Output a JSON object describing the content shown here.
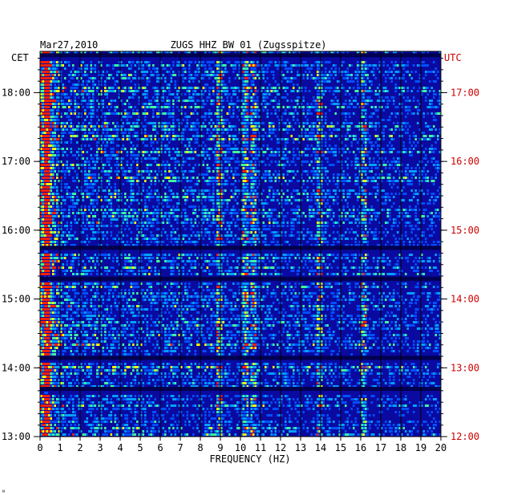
{
  "chart_data": {
    "type": "heatmap",
    "title_date": "Mar27,2010",
    "title": "ZUGS HHZ BW 01 (Zugsspitze)",
    "xlabel": "FREQUENCY (HZ)",
    "xlim": [
      0,
      20
    ],
    "x_ticks": [
      "0",
      "1",
      "2",
      "3",
      "4",
      "5",
      "6",
      "7",
      "8",
      "9",
      "10",
      "11",
      "12",
      "13",
      "14",
      "15",
      "16",
      "17",
      "18",
      "19",
      "20"
    ],
    "left_axis": {
      "label": "CET",
      "ticks": [
        {
          "hour": 18,
          "label": "18:00"
        },
        {
          "hour": 17,
          "label": "17:00"
        },
        {
          "hour": 16,
          "label": "16:00"
        },
        {
          "hour": 15,
          "label": "15:00"
        },
        {
          "hour": 14,
          "label": "14:00"
        },
        {
          "hour": 13,
          "label": "13:00"
        }
      ],
      "range_hours": [
        13.0,
        18.6
      ]
    },
    "right_axis": {
      "label": "UTC",
      "ticks": [
        {
          "hour": 17,
          "label": "17:00"
        },
        {
          "hour": 16,
          "label": "16:00"
        },
        {
          "hour": 15,
          "label": "15:00"
        },
        {
          "hour": 14,
          "label": "14:00"
        },
        {
          "hour": 13,
          "label": "13:00"
        },
        {
          "hour": 12,
          "label": "12:00"
        }
      ],
      "color": "#cc0000"
    },
    "spectral_lines_hz": [
      0.3,
      8.9,
      10.2,
      10.6,
      13.9,
      16.1
    ],
    "dark_gap_rows_cet": [
      18.55,
      15.75,
      15.3,
      14.15,
      13.7
    ],
    "colors": {
      "background": "#0a0aa0",
      "low": "#0000c8",
      "mid": "#00a0ff",
      "high": "#ffff00",
      "peak": "#ff2000",
      "grid": "#000000",
      "utc_text": "#cc0000"
    }
  },
  "footer_mark": "ᴺ"
}
